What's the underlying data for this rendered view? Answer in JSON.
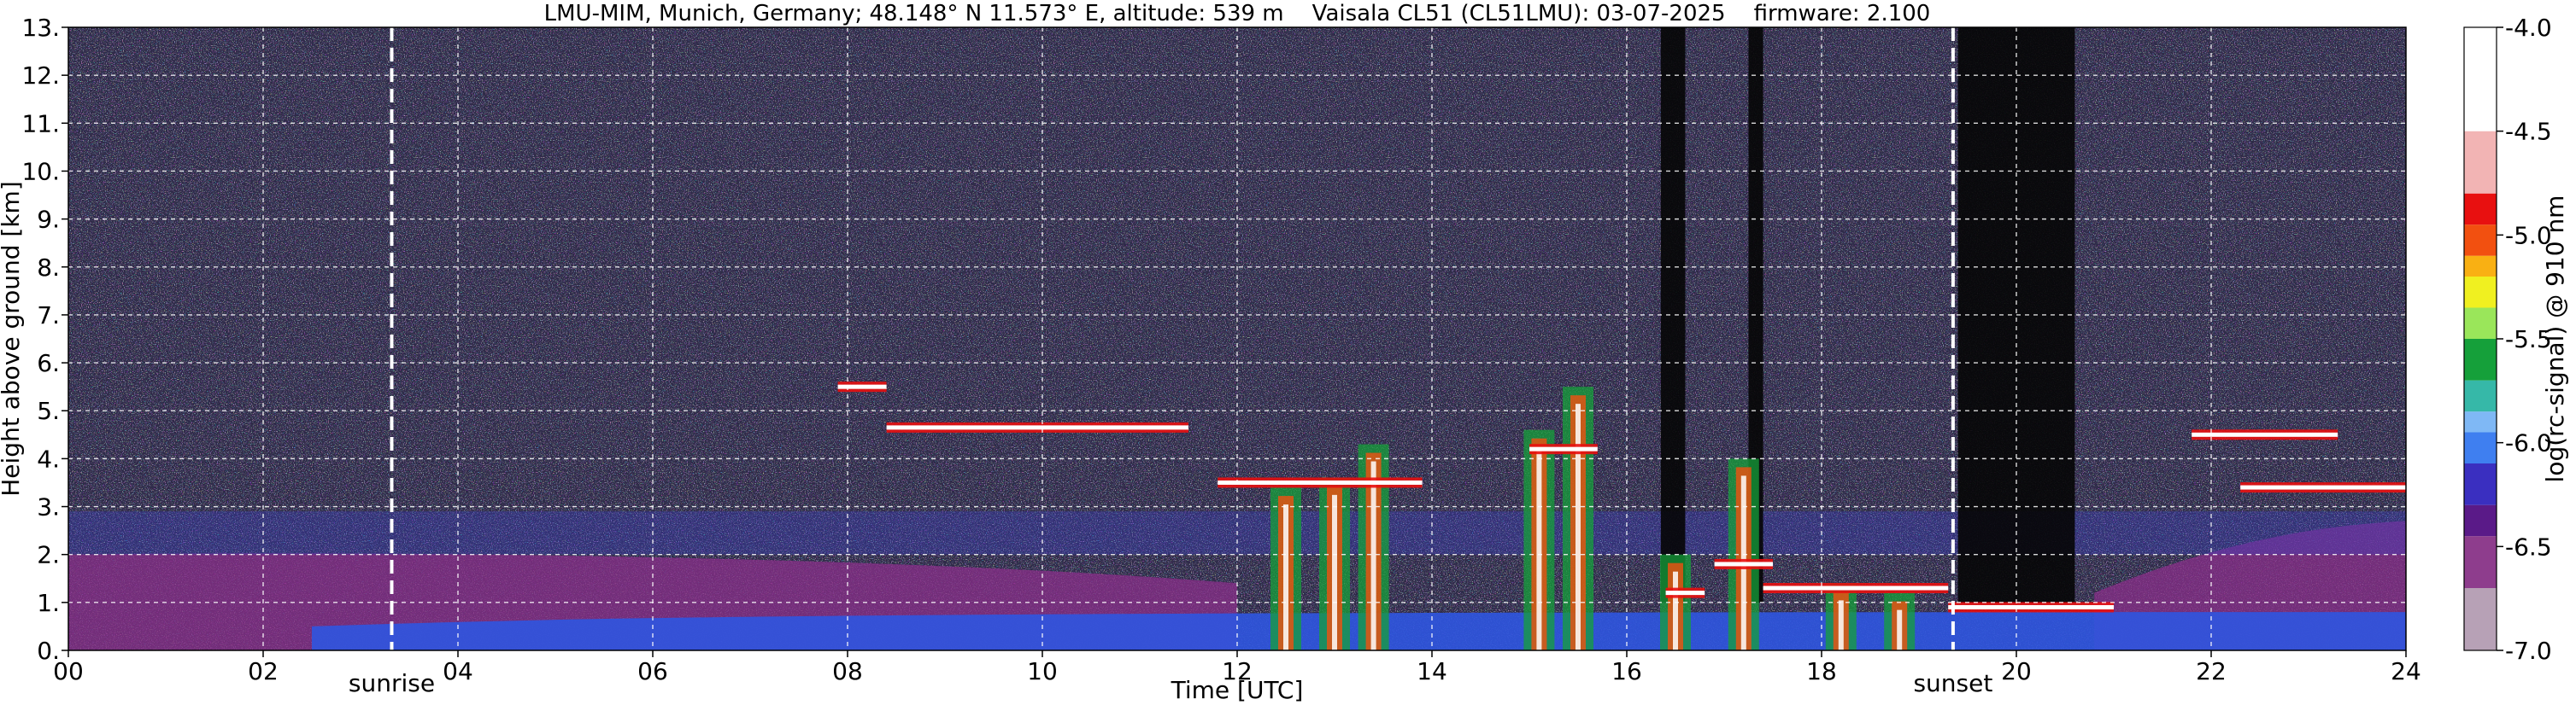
{
  "chart_data": {
    "type": "heatmap",
    "title": "LMU-MIM, Munich, Germany; 48.148° N 11.573° E, altitude: 539 m    Vaisala CL51 (CL51LMU): 03-07-2025    firmware: 2.100",
    "xlabel": "Time [UTC]",
    "ylabel": "Height above ground [km]",
    "xlim": [
      0,
      24
    ],
    "ylim": [
      0,
      13
    ],
    "x_ticks": [
      0,
      2,
      4,
      6,
      8,
      10,
      12,
      14,
      16,
      18,
      20,
      22,
      24
    ],
    "x_tick_labels": [
      "00",
      "02",
      "04",
      "06",
      "08",
      "10",
      "12",
      "14",
      "16",
      "18",
      "20",
      "22",
      "24"
    ],
    "y_ticks": [
      0,
      1,
      2,
      3,
      4,
      5,
      6,
      7,
      8,
      9,
      10,
      11,
      12,
      13
    ],
    "y_tick_labels": [
      "0.",
      "1.",
      "2.",
      "3.",
      "4.",
      "5.",
      "6.",
      "7.",
      "8.",
      "9.",
      "10.",
      "11.",
      "12.",
      "13."
    ],
    "grid": true,
    "colorbar": {
      "label": "log(rc-signal) @ 910 nm",
      "range": [
        -7.0,
        -4.0
      ],
      "ticks": [
        -4.0,
        -4.5,
        -5.0,
        -5.5,
        -6.0,
        -6.5,
        -7.0
      ],
      "tick_labels": [
        "-4.0",
        "-4.5",
        "-5.0",
        "-5.5",
        "-6.0",
        "-6.5",
        "-7.0"
      ],
      "stops": [
        {
          "v": -7.0,
          "color": "#b7a1b6"
        },
        {
          "v": -6.7,
          "color": "#8e3d8d"
        },
        {
          "v": -6.45,
          "color": "#5a1a88"
        },
        {
          "v": -6.3,
          "color": "#3a2fc0"
        },
        {
          "v": -6.1,
          "color": "#3f7ff0"
        },
        {
          "v": -5.95,
          "color": "#7fb8f5"
        },
        {
          "v": -5.85,
          "color": "#36b8a8"
        },
        {
          "v": -5.7,
          "color": "#15a03a"
        },
        {
          "v": -5.5,
          "color": "#9ae65a"
        },
        {
          "v": -5.35,
          "color": "#f0f020"
        },
        {
          "v": -5.2,
          "color": "#f9b013"
        },
        {
          "v": -5.1,
          "color": "#f25010"
        },
        {
          "v": -4.95,
          "color": "#e81010"
        },
        {
          "v": -4.8,
          "color": "#f2b4b4"
        },
        {
          "v": -4.5,
          "color": "#ffffff"
        },
        {
          "v": -4.0,
          "color": "#ffffff"
        }
      ]
    },
    "annotations": [
      {
        "label": "sunrise",
        "x": 3.32
      },
      {
        "label": "sunset",
        "x": 19.35
      }
    ],
    "features": {
      "noise_background_color": "#2e2a48",
      "boundary_layer_color": "#8a2f8a",
      "surface_layer_color": "#2f55e0",
      "cloud_segments": [
        {
          "x0": 7.9,
          "x1": 8.4,
          "y": 5.5
        },
        {
          "x0": 8.4,
          "x1": 11.5,
          "y": 4.65
        },
        {
          "x0": 11.8,
          "x1": 13.9,
          "y": 3.5
        },
        {
          "x0": 15.0,
          "x1": 15.7,
          "y": 4.2
        },
        {
          "x0": 16.4,
          "x1": 16.8,
          "y": 1.2
        },
        {
          "x0": 16.9,
          "x1": 17.5,
          "y": 1.8
        },
        {
          "x0": 17.4,
          "x1": 19.3,
          "y": 1.3
        },
        {
          "x0": 19.3,
          "x1": 21.0,
          "y": 0.9
        },
        {
          "x0": 21.8,
          "x1": 23.3,
          "y": 4.5
        },
        {
          "x0": 22.3,
          "x1": 24.0,
          "y": 3.4
        }
      ],
      "precip_columns": [
        {
          "x": 12.5,
          "top": 3.4
        },
        {
          "x": 13.0,
          "top": 3.6
        },
        {
          "x": 13.4,
          "top": 4.3
        },
        {
          "x": 15.1,
          "top": 4.6
        },
        {
          "x": 15.5,
          "top": 5.5
        },
        {
          "x": 16.5,
          "top": 2.0
        },
        {
          "x": 17.2,
          "top": 4.0
        },
        {
          "x": 18.2,
          "top": 1.4
        },
        {
          "x": 18.8,
          "top": 1.2
        }
      ],
      "dark_bands": [
        {
          "x0": 16.35,
          "x1": 16.6
        },
        {
          "x0": 17.25,
          "x1": 17.4
        },
        {
          "x0": 19.4,
          "x1": 20.6
        }
      ]
    }
  }
}
